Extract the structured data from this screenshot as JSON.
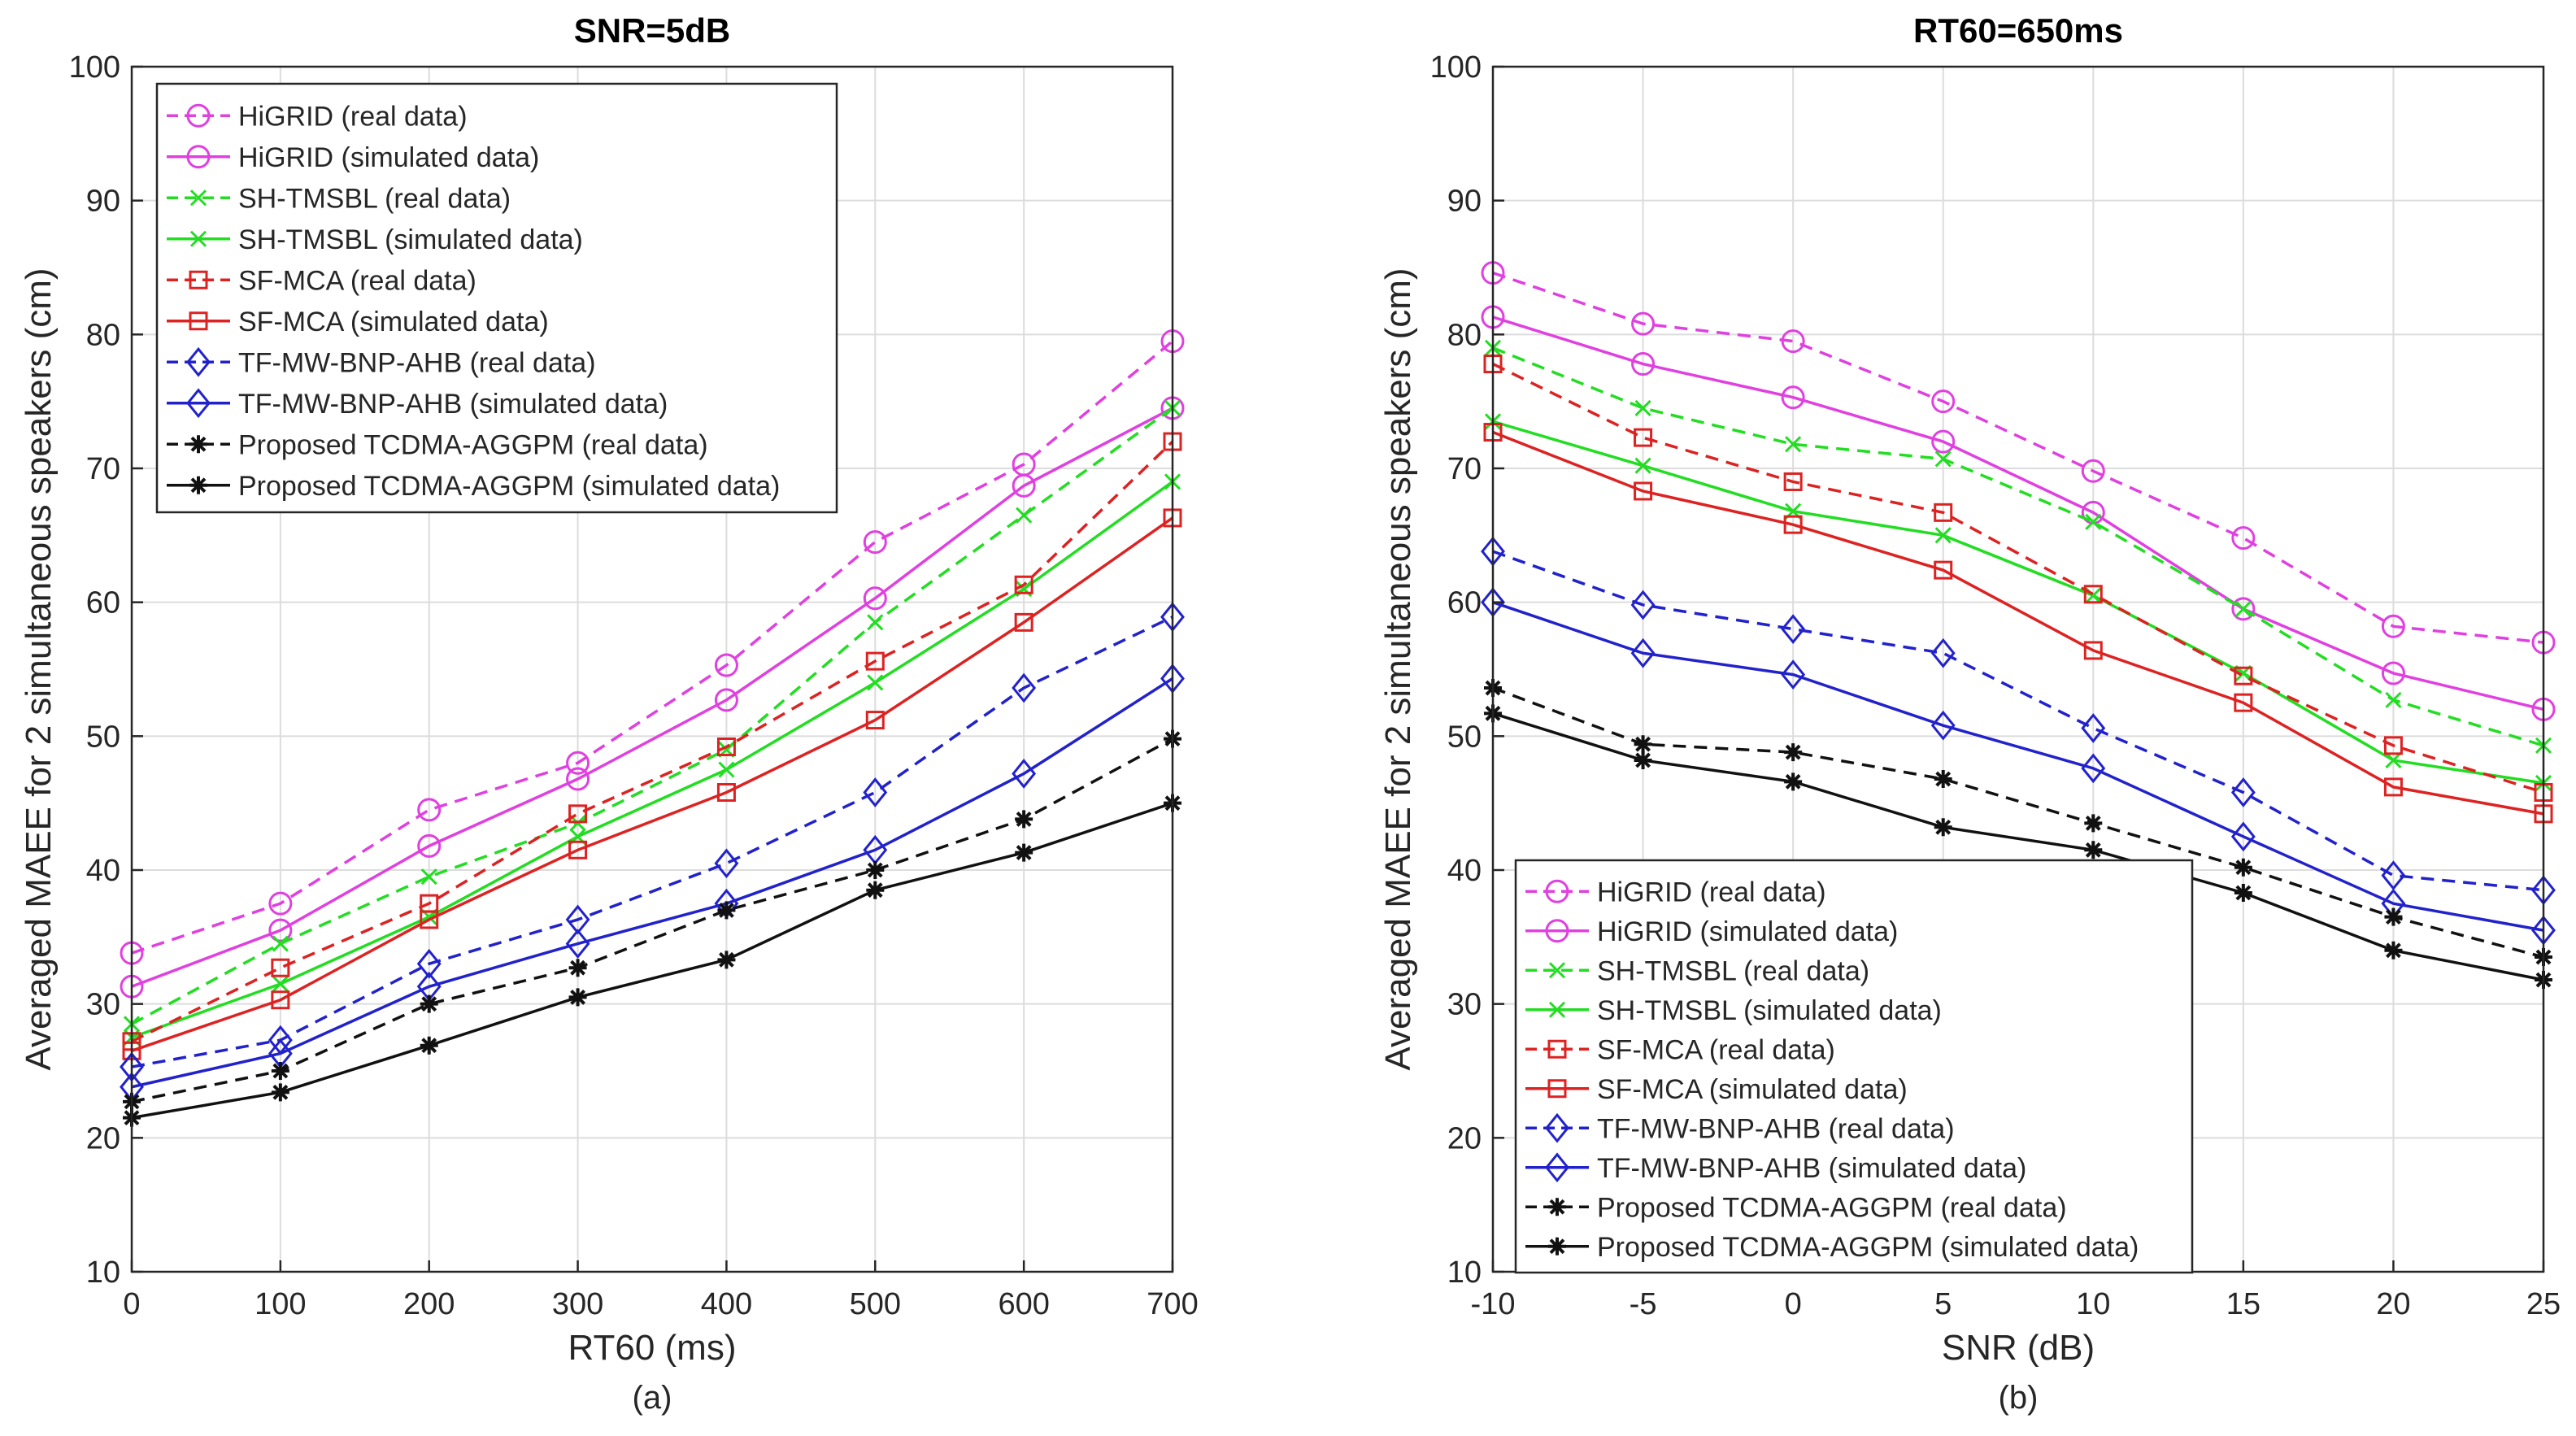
{
  "chart_data": [
    {
      "type": "line",
      "title": "SNR=5dB",
      "xlabel": "RT60 (ms)",
      "ylabel": "Averaged MAEE for 2 simultaneous speakers (cm)",
      "sublabel": "(a)",
      "x": [
        0,
        100,
        200,
        300,
        400,
        500,
        600,
        700
      ],
      "xticks": [
        "0",
        "100",
        "200",
        "300",
        "400",
        "500",
        "600",
        "700"
      ],
      "xlim": [
        0,
        700
      ],
      "ylim": [
        10,
        100
      ],
      "yticks": [
        "10",
        "20",
        "30",
        "40",
        "50",
        "60",
        "70",
        "80",
        "90",
        "100"
      ],
      "grid": true,
      "legend_position": "top-left",
      "series": [
        {
          "name": "HiGRID (real data)",
          "color": "#e040e0",
          "marker": "circle",
          "dashed": true,
          "values": [
            33.8,
            37.5,
            44.5,
            48.0,
            55.3,
            64.5,
            70.3,
            79.5
          ]
        },
        {
          "name": "HiGRID (simulated data)",
          "color": "#e040e0",
          "marker": "circle",
          "dashed": false,
          "values": [
            31.3,
            35.5,
            41.8,
            46.8,
            52.7,
            60.3,
            68.7,
            74.5
          ]
        },
        {
          "name": "SH-TMSBL (real data)",
          "color": "#22dd22",
          "marker": "x",
          "dashed": true,
          "values": [
            28.5,
            34.5,
            39.5,
            43.5,
            49.0,
            58.5,
            66.5,
            74.5
          ]
        },
        {
          "name": "SH-TMSBL (simulated data)",
          "color": "#22dd22",
          "marker": "x",
          "dashed": false,
          "values": [
            27.5,
            31.5,
            36.5,
            42.5,
            47.5,
            54.0,
            61.0,
            69.0
          ]
        },
        {
          "name": "SF-MCA (real data)",
          "color": "#dd2222",
          "marker": "square",
          "dashed": true,
          "values": [
            27.2,
            32.7,
            37.5,
            44.2,
            49.2,
            55.6,
            61.3,
            72.0
          ]
        },
        {
          "name": "SF-MCA (simulated data)",
          "color": "#dd2222",
          "marker": "square",
          "dashed": false,
          "values": [
            26.5,
            30.3,
            36.3,
            41.5,
            45.8,
            51.2,
            58.5,
            66.3
          ]
        },
        {
          "name": "TF-MW-BNP-AHB (real data)",
          "color": "#2222cc",
          "marker": "diamond",
          "dashed": true,
          "values": [
            25.3,
            27.3,
            33.0,
            36.3,
            40.5,
            45.8,
            53.6,
            58.9
          ]
        },
        {
          "name": "TF-MW-BNP-AHB (simulated data)",
          "color": "#2222cc",
          "marker": "diamond",
          "dashed": false,
          "values": [
            23.8,
            26.3,
            31.3,
            34.5,
            37.5,
            41.5,
            47.2,
            54.3
          ]
        },
        {
          "name": "Proposed TCDMA-AGGPM (real data)",
          "color": "#111111",
          "marker": "star",
          "dashed": true,
          "values": [
            22.7,
            25.0,
            30.0,
            32.7,
            37.0,
            40.0,
            43.8,
            49.8
          ]
        },
        {
          "name": "Proposed TCDMA-AGGPM (simulated data)",
          "color": "#111111",
          "marker": "star",
          "dashed": false,
          "values": [
            21.5,
            23.4,
            26.9,
            30.5,
            33.3,
            38.5,
            41.3,
            45.0
          ]
        }
      ]
    },
    {
      "type": "line",
      "title": "RT60=650ms",
      "xlabel": "SNR (dB)",
      "ylabel": "Averaged MAEE for 2 simultaneous speakers (cm)",
      "sublabel": "(b)",
      "x": [
        -10,
        -5,
        0,
        5,
        10,
        15,
        20,
        25
      ],
      "xticks": [
        "-10",
        "-5",
        "0",
        "5",
        "10",
        "15",
        "20",
        "25"
      ],
      "xlim": [
        -10,
        25
      ],
      "ylim": [
        10,
        100
      ],
      "yticks": [
        "10",
        "20",
        "30",
        "40",
        "50",
        "60",
        "70",
        "80",
        "90",
        "100"
      ],
      "grid": true,
      "legend_position": "bottom-left",
      "series": [
        {
          "name": "HiGRID (real data)",
          "color": "#e040e0",
          "marker": "circle",
          "dashed": true,
          "values": [
            84.6,
            80.8,
            79.5,
            75.0,
            69.8,
            64.8,
            58.2,
            57.0
          ]
        },
        {
          "name": "HiGRID (simulated data)",
          "color": "#e040e0",
          "marker": "circle",
          "dashed": false,
          "values": [
            81.3,
            77.8,
            75.3,
            72.0,
            66.7,
            59.5,
            54.7,
            52.0
          ]
        },
        {
          "name": "SH-TMSBL (real data)",
          "color": "#22dd22",
          "marker": "x",
          "dashed": true,
          "values": [
            79.0,
            74.5,
            71.8,
            70.7,
            66.0,
            59.5,
            52.7,
            49.3
          ]
        },
        {
          "name": "SH-TMSBL (simulated data)",
          "color": "#22dd22",
          "marker": "x",
          "dashed": false,
          "values": [
            73.5,
            70.2,
            66.8,
            65.0,
            60.5,
            54.7,
            48.2,
            46.5
          ]
        },
        {
          "name": "SF-MCA (real data)",
          "color": "#dd2222",
          "marker": "square",
          "dashed": true,
          "values": [
            77.8,
            72.3,
            69.0,
            66.7,
            60.6,
            54.5,
            49.3,
            45.8
          ]
        },
        {
          "name": "SF-MCA (simulated data)",
          "color": "#dd2222",
          "marker": "square",
          "dashed": false,
          "values": [
            72.7,
            68.3,
            65.8,
            62.4,
            56.4,
            52.5,
            46.2,
            44.2
          ]
        },
        {
          "name": "TF-MW-BNP-AHB (real data)",
          "color": "#2222cc",
          "marker": "diamond",
          "dashed": true,
          "values": [
            63.8,
            59.8,
            58.0,
            56.2,
            50.6,
            45.8,
            39.6,
            38.5
          ]
        },
        {
          "name": "TF-MW-BNP-AHB (simulated data)",
          "color": "#2222cc",
          "marker": "diamond",
          "dashed": false,
          "values": [
            60.0,
            56.2,
            54.6,
            50.8,
            47.6,
            42.5,
            37.5,
            35.5
          ]
        },
        {
          "name": "Proposed TCDMA-AGGPM (real data)",
          "color": "#111111",
          "marker": "star",
          "dashed": true,
          "values": [
            53.6,
            49.4,
            48.8,
            46.8,
            43.5,
            40.2,
            36.5,
            33.5
          ]
        },
        {
          "name": "Proposed TCDMA-AGGPM (simulated data)",
          "color": "#111111",
          "marker": "star",
          "dashed": false,
          "values": [
            51.7,
            48.2,
            46.6,
            43.2,
            41.5,
            38.3,
            34.0,
            31.8
          ]
        }
      ]
    }
  ]
}
